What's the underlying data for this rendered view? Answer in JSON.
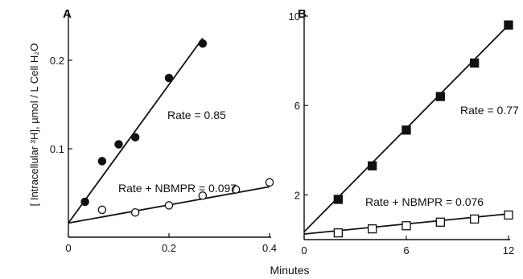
{
  "figure": {
    "xlabel": "Minutes",
    "ylabel": "[ Intracellular ³H], µmol / L Cell H₂O"
  },
  "chart_data": [
    {
      "panel": "A",
      "type": "scatter",
      "xlabel": "Minutes",
      "ylabel": "[ Intracellular ³H], µmol / L Cell H₂O",
      "xlim": [
        0,
        0.4
      ],
      "ylim": [
        0,
        0.25
      ],
      "xticks": [
        0,
        0.2,
        0.4
      ],
      "xtick_labels": [
        "0",
        "0.2",
        "0.4"
      ],
      "yticks": [
        0.1,
        0.2
      ],
      "ytick_labels": [
        "0.1",
        "0.2"
      ],
      "grid": false,
      "series": [
        {
          "marker": "filled-circle",
          "annotation": "Rate = 0.85",
          "x": [
            0.033,
            0.067,
            0.1,
            0.133,
            0.2,
            0.267
          ],
          "y": [
            0.04,
            0.086,
            0.105,
            0.113,
            0.18,
            0.219
          ],
          "fit": [
            [
              0,
              0.016
            ],
            [
              0.267,
              0.225
            ]
          ]
        },
        {
          "marker": "open-circle",
          "annotation": "Rate + NBMPR = 0.097",
          "x": [
            0.067,
            0.133,
            0.2,
            0.267,
            0.333,
            0.4
          ],
          "y": [
            0.031,
            0.028,
            0.036,
            0.047,
            0.054,
            0.062
          ],
          "fit": [
            [
              0,
              0.016
            ],
            [
              0.4,
              0.057
            ]
          ]
        }
      ]
    },
    {
      "panel": "B",
      "type": "scatter",
      "xlabel": "Minutes",
      "xlim": [
        0,
        12
      ],
      "ylim": [
        0,
        10
      ],
      "xticks": [
        0,
        6,
        12
      ],
      "xtick_labels": [
        "0",
        "6",
        "12"
      ],
      "yticks": [
        2,
        6,
        10
      ],
      "ytick_labels": [
        "2",
        "6",
        "10"
      ],
      "grid": false,
      "series": [
        {
          "marker": "filled-square",
          "annotation": "Rate = 0.77",
          "x": [
            2,
            4,
            6,
            8,
            10,
            12
          ],
          "y": [
            1.8,
            3.3,
            4.9,
            6.4,
            7.9,
            9.6
          ],
          "fit": [
            [
              0,
              0.35
            ],
            [
              12,
              9.6
            ]
          ]
        },
        {
          "marker": "open-square",
          "annotation": "Rate + NBMPR = 0.076",
          "x": [
            2,
            4,
            6,
            8,
            10,
            12
          ],
          "y": [
            0.3,
            0.48,
            0.62,
            0.78,
            0.92,
            1.1
          ],
          "fit": [
            [
              0,
              0.25
            ],
            [
              12,
              1.15
            ]
          ]
        }
      ]
    }
  ]
}
